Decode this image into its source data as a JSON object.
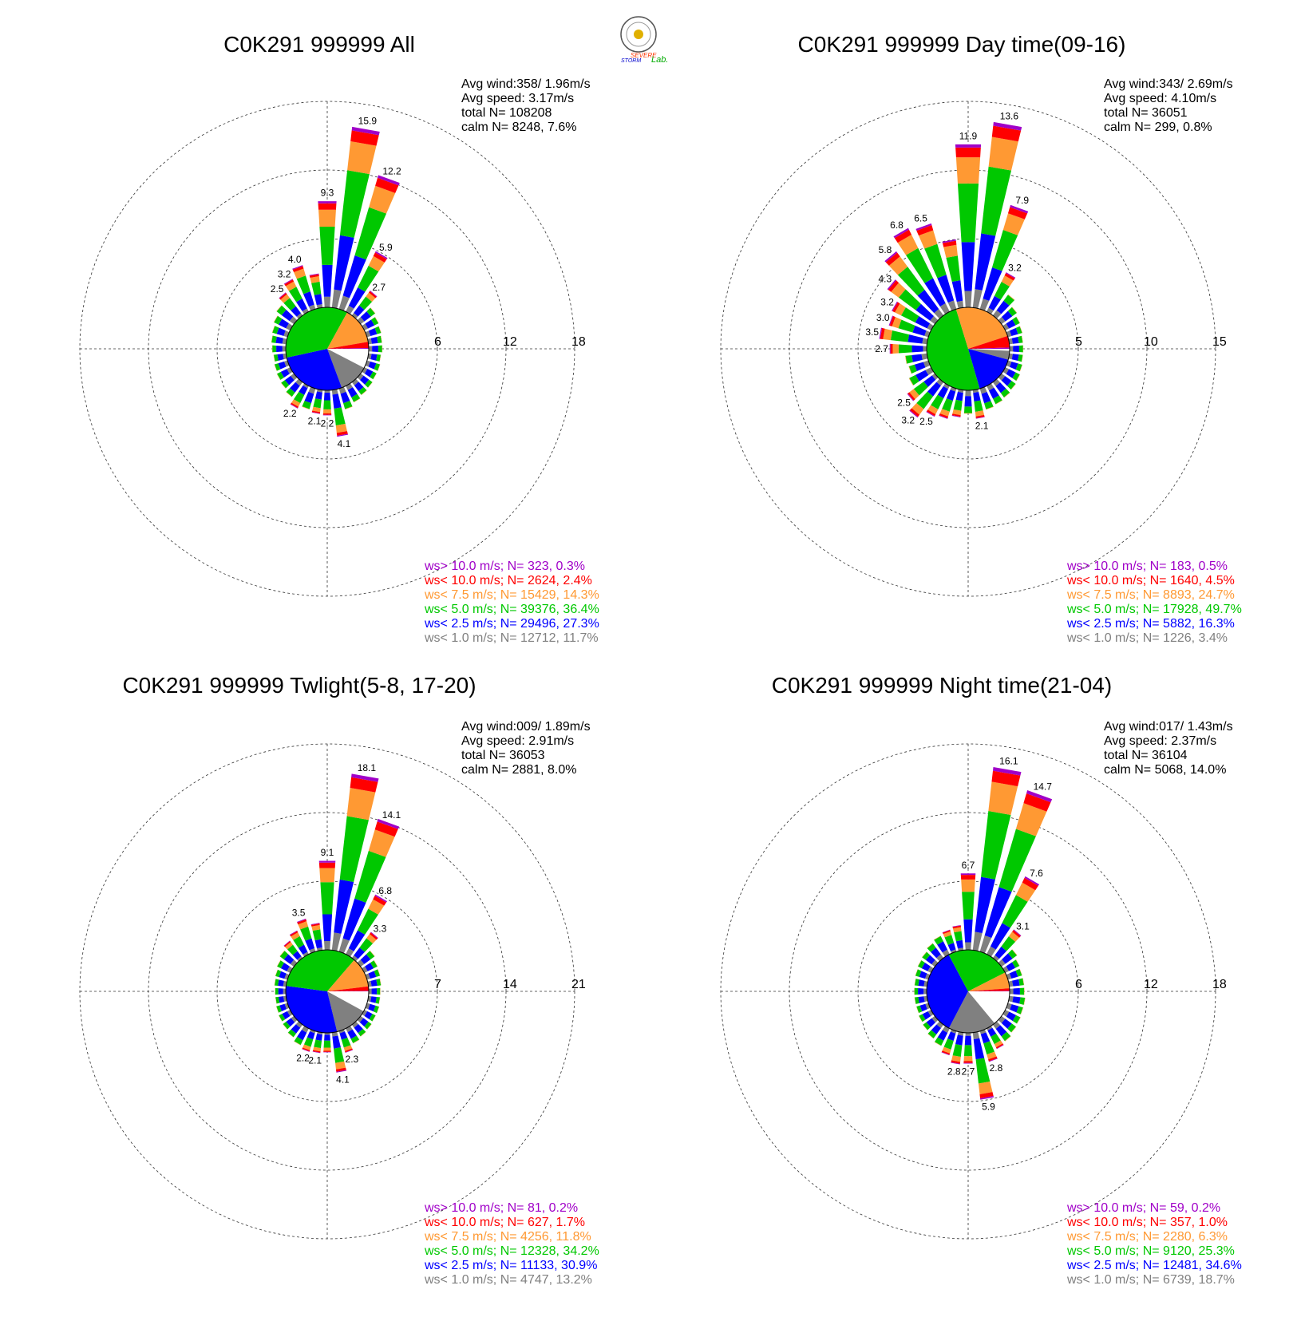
{
  "logo": {
    "text_line1": "SEVERE",
    "text_line2": "STORM",
    "text_line3": "Lab."
  },
  "colors": {
    "gt10": "#a000c8",
    "lt10": "#ff0000",
    "lt7_5": "#ff9933",
    "lt5": "#00c800",
    "lt2_5": "#0000ff",
    "lt1": "#808080",
    "calm": "#ffffff"
  },
  "chart_data": [
    {
      "type": "windrose",
      "title": "C0K291 999999 All",
      "info": [
        "Avg wind:358/ 1.96m/s",
        "Avg speed: 3.17m/s",
        "total N=     108208",
        "calm N=   8248,   7.6%"
      ],
      "ring_values": [
        6,
        12,
        18
      ],
      "ring_labels": [
        "6",
        "12",
        "18"
      ],
      "rmax": 18,
      "legend": [
        {
          "text": "ws> 10.0 m/s; N=   323,  0.3%",
          "color": "gt10"
        },
        {
          "text": "ws< 10.0 m/s; N=  2624,  2.4%",
          "color": "lt10"
        },
        {
          "text": "ws<  7.5 m/s; N= 15429, 14.3%",
          "color": "lt7_5"
        },
        {
          "text": "ws<  5.0 m/s; N= 39376, 36.4%",
          "color": "lt5"
        },
        {
          "text": "ws<  2.5 m/s; N= 29496, 27.3%",
          "color": "lt2_5"
        },
        {
          "text": "ws<  1.0 m/s; N= 12712, 11.7%",
          "color": "lt1"
        }
      ],
      "pie": [
        7.6,
        11.7,
        27.3,
        36.4,
        14.3,
        2.4,
        0.3
      ],
      "bars": [
        {
          "dir": 0,
          "total": 9.3,
          "label": "9.3"
        },
        {
          "dir": 10,
          "total": 15.9,
          "label": "15.9"
        },
        {
          "dir": 20,
          "total": 12.2,
          "label": "12.2"
        },
        {
          "dir": 30,
          "total": 5.9,
          "label": "5.9"
        },
        {
          "dir": 40,
          "total": 2.7,
          "label": "2.7"
        },
        {
          "dir": 50,
          "total": 1.6
        },
        {
          "dir": 60,
          "total": 1.4
        },
        {
          "dir": 70,
          "total": 1.3
        },
        {
          "dir": 80,
          "total": 1.2
        },
        {
          "dir": 90,
          "total": 1.2
        },
        {
          "dir": 100,
          "total": 1.1
        },
        {
          "dir": 110,
          "total": 1.2
        },
        {
          "dir": 120,
          "total": 1.2
        },
        {
          "dir": 130,
          "total": 1.3
        },
        {
          "dir": 140,
          "total": 1.4
        },
        {
          "dir": 150,
          "total": 1.6
        },
        {
          "dir": 160,
          "total": 1.9
        },
        {
          "dir": 170,
          "total": 4.1,
          "label": "4.1"
        },
        {
          "dir": 180,
          "total": 2.2,
          "label": "2.2"
        },
        {
          "dir": 190,
          "total": 2.1,
          "label": "2.1"
        },
        {
          "dir": 200,
          "total": 1.9
        },
        {
          "dir": 210,
          "total": 2.2,
          "label": "2.2"
        },
        {
          "dir": 220,
          "total": 1.6
        },
        {
          "dir": 230,
          "total": 1.4
        },
        {
          "dir": 240,
          "total": 1.3
        },
        {
          "dir": 250,
          "total": 1.2
        },
        {
          "dir": 260,
          "total": 1.1
        },
        {
          "dir": 270,
          "total": 1.2
        },
        {
          "dir": 280,
          "total": 1.3
        },
        {
          "dir": 290,
          "total": 1.4
        },
        {
          "dir": 300,
          "total": 1.6
        },
        {
          "dir": 310,
          "total": 1.9
        },
        {
          "dir": 320,
          "total": 2.5,
          "label": "2.5"
        },
        {
          "dir": 330,
          "total": 3.2,
          "label": "3.2"
        },
        {
          "dir": 340,
          "total": 4.0,
          "label": "4.0"
        },
        {
          "dir": 350,
          "total": 3.0
        }
      ]
    },
    {
      "type": "windrose",
      "title": "C0K291 999999 Day time(09-16)",
      "info": [
        "Avg wind:343/ 2.69m/s",
        "Avg speed: 4.10m/s",
        "total N=      36051",
        "calm N=    299,   0.8%"
      ],
      "ring_values": [
        5,
        10,
        15
      ],
      "ring_labels": [
        "5",
        "10",
        "15"
      ],
      "rmax": 15,
      "legend": [
        {
          "text": "ws> 10.0 m/s; N=   183,  0.5%",
          "color": "gt10"
        },
        {
          "text": "ws< 10.0 m/s; N=  1640,  4.5%",
          "color": "lt10"
        },
        {
          "text": "ws<  7.5 m/s; N=  8893, 24.7%",
          "color": "lt7_5"
        },
        {
          "text": "ws<  5.0 m/s; N= 17928, 49.7%",
          "color": "lt5"
        },
        {
          "text": "ws<  2.5 m/s; N=  5882, 16.3%",
          "color": "lt2_5"
        },
        {
          "text": "ws<  1.0 m/s; N=  1226,  3.4%",
          "color": "lt1"
        }
      ],
      "pie": [
        0.8,
        3.4,
        16.3,
        49.7,
        24.7,
        4.5,
        0.5
      ],
      "bars": [
        {
          "dir": 0,
          "total": 11.9,
          "label": "11.9"
        },
        {
          "dir": 10,
          "total": 13.6,
          "label": "13.6"
        },
        {
          "dir": 20,
          "total": 7.9,
          "label": "7.9"
        },
        {
          "dir": 30,
          "total": 3.2,
          "label": "3.2"
        },
        {
          "dir": 40,
          "total": 1.9
        },
        {
          "dir": 50,
          "total": 1.4
        },
        {
          "dir": 60,
          "total": 1.2
        },
        {
          "dir": 70,
          "total": 1.1
        },
        {
          "dir": 80,
          "total": 1.0
        },
        {
          "dir": 90,
          "total": 1.0
        },
        {
          "dir": 100,
          "total": 1.0
        },
        {
          "dir": 110,
          "total": 1.1
        },
        {
          "dir": 120,
          "total": 1.2
        },
        {
          "dir": 130,
          "total": 1.3
        },
        {
          "dir": 140,
          "total": 1.4
        },
        {
          "dir": 150,
          "total": 1.5
        },
        {
          "dir": 160,
          "total": 1.6
        },
        {
          "dir": 170,
          "total": 2.1,
          "label": "2.1"
        },
        {
          "dir": 180,
          "total": 1.7
        },
        {
          "dir": 190,
          "total": 2.0
        },
        {
          "dir": 200,
          "total": 2.3
        },
        {
          "dir": 210,
          "total": 2.5,
          "label": "2.5"
        },
        {
          "dir": 220,
          "total": 3.2,
          "label": "3.2"
        },
        {
          "dir": 230,
          "total": 2.5,
          "label": "2.5"
        },
        {
          "dir": 240,
          "total": 1.8
        },
        {
          "dir": 250,
          "total": 1.5
        },
        {
          "dir": 260,
          "total": 1.6
        },
        {
          "dir": 270,
          "total": 2.7,
          "label": "2.7"
        },
        {
          "dir": 280,
          "total": 3.5,
          "label": "3.5"
        },
        {
          "dir": 290,
          "total": 3.0,
          "label": "3.0"
        },
        {
          "dir": 300,
          "total": 3.2,
          "label": "3.2"
        },
        {
          "dir": 310,
          "total": 4.3,
          "label": "4.3"
        },
        {
          "dir": 320,
          "total": 5.8,
          "label": "5.8"
        },
        {
          "dir": 330,
          "total": 6.8,
          "label": "6.8"
        },
        {
          "dir": 340,
          "total": 6.5,
          "label": "6.5"
        },
        {
          "dir": 350,
          "total": 5.0
        }
      ]
    },
    {
      "type": "windrose",
      "title": "C0K291 999999 Twlight(5-8, 17-20)",
      "info": [
        "Avg wind:009/ 1.89m/s",
        "Avg speed: 2.91m/s",
        "total N=      36053",
        "calm N=   2881,   8.0%"
      ],
      "ring_values": [
        7,
        14,
        21
      ],
      "ring_labels": [
        "7",
        "14",
        "21"
      ],
      "rmax": 21,
      "legend": [
        {
          "text": "ws> 10.0 m/s; N=    81,  0.2%",
          "color": "gt10"
        },
        {
          "text": "ws< 10.0 m/s; N=   627,  1.7%",
          "color": "lt10"
        },
        {
          "text": "ws<  7.5 m/s; N=  4256, 11.8%",
          "color": "lt7_5"
        },
        {
          "text": "ws<  5.0 m/s; N= 12328, 34.2%",
          "color": "lt5"
        },
        {
          "text": "ws<  2.5 m/s; N= 11133, 30.9%",
          "color": "lt2_5"
        },
        {
          "text": "ws<  1.0 m/s; N=  4747, 13.2%",
          "color": "lt1"
        }
      ],
      "pie": [
        8.0,
        13.2,
        30.9,
        34.2,
        11.8,
        1.7,
        0.2
      ],
      "bars": [
        {
          "dir": 0,
          "total": 9.1,
          "label": "9.1"
        },
        {
          "dir": 10,
          "total": 18.1,
          "label": "18.1"
        },
        {
          "dir": 20,
          "total": 14.1,
          "label": "14.1"
        },
        {
          "dir": 30,
          "total": 6.8,
          "label": "6.8"
        },
        {
          "dir": 40,
          "total": 3.3,
          "label": "3.3"
        },
        {
          "dir": 50,
          "total": 1.8
        },
        {
          "dir": 60,
          "total": 1.5
        },
        {
          "dir": 70,
          "total": 1.4
        },
        {
          "dir": 80,
          "total": 1.3
        },
        {
          "dir": 90,
          "total": 1.2
        },
        {
          "dir": 100,
          "total": 1.2
        },
        {
          "dir": 110,
          "total": 1.3
        },
        {
          "dir": 120,
          "total": 1.3
        },
        {
          "dir": 130,
          "total": 1.4
        },
        {
          "dir": 140,
          "total": 1.5
        },
        {
          "dir": 150,
          "total": 1.7
        },
        {
          "dir": 160,
          "total": 2.3,
          "label": "2.3"
        },
        {
          "dir": 170,
          "total": 4.1,
          "label": "4.1"
        },
        {
          "dir": 180,
          "total": 2.0
        },
        {
          "dir": 190,
          "total": 2.1,
          "label": "2.1"
        },
        {
          "dir": 200,
          "total": 2.2,
          "label": "2.2"
        },
        {
          "dir": 210,
          "total": 1.9
        },
        {
          "dir": 220,
          "total": 1.6
        },
        {
          "dir": 230,
          "total": 1.4
        },
        {
          "dir": 240,
          "total": 1.3
        },
        {
          "dir": 250,
          "total": 1.2
        },
        {
          "dir": 260,
          "total": 1.1
        },
        {
          "dir": 270,
          "total": 1.1
        },
        {
          "dir": 280,
          "total": 1.2
        },
        {
          "dir": 290,
          "total": 1.3
        },
        {
          "dir": 300,
          "total": 1.5
        },
        {
          "dir": 310,
          "total": 1.8
        },
        {
          "dir": 320,
          "total": 2.2
        },
        {
          "dir": 330,
          "total": 2.7
        },
        {
          "dir": 340,
          "total": 3.5,
          "label": "3.5"
        },
        {
          "dir": 350,
          "total": 2.8
        }
      ]
    },
    {
      "type": "windrose",
      "title": "C0K291 999999 Night time(21-04)",
      "info": [
        "Avg wind:017/ 1.43m/s",
        "Avg speed: 2.37m/s",
        "total N=      36104",
        "calm N=   5068,  14.0%"
      ],
      "ring_values": [
        6,
        12,
        18
      ],
      "ring_labels": [
        "6",
        "12",
        "18"
      ],
      "rmax": 18,
      "legend": [
        {
          "text": "ws> 10.0 m/s; N=    59,  0.2%",
          "color": "gt10"
        },
        {
          "text": "ws< 10.0 m/s; N=   357,  1.0%",
          "color": "lt10"
        },
        {
          "text": "ws<  7.5 m/s; N=  2280,  6.3%",
          "color": "lt7_5"
        },
        {
          "text": "ws<  5.0 m/s; N=  9120, 25.3%",
          "color": "lt5"
        },
        {
          "text": "ws<  2.5 m/s; N= 12481, 34.6%",
          "color": "lt2_5"
        },
        {
          "text": "ws<  1.0 m/s; N=  6739, 18.7%",
          "color": "lt1"
        }
      ],
      "pie": [
        14.0,
        18.7,
        34.6,
        25.3,
        6.3,
        1.0,
        0.2
      ],
      "bars": [
        {
          "dir": 0,
          "total": 6.7,
          "label": "6.7"
        },
        {
          "dir": 10,
          "total": 16.1,
          "label": "16.1"
        },
        {
          "dir": 20,
          "total": 14.7,
          "label": "14.7"
        },
        {
          "dir": 30,
          "total": 7.6,
          "label": "7.6"
        },
        {
          "dir": 40,
          "total": 3.1,
          "label": "3.1"
        },
        {
          "dir": 50,
          "total": 1.7
        },
        {
          "dir": 60,
          "total": 1.4
        },
        {
          "dir": 70,
          "total": 1.3
        },
        {
          "dir": 80,
          "total": 1.3
        },
        {
          "dir": 90,
          "total": 1.3
        },
        {
          "dir": 100,
          "total": 1.4
        },
        {
          "dir": 110,
          "total": 1.4
        },
        {
          "dir": 120,
          "total": 1.5
        },
        {
          "dir": 130,
          "total": 1.6
        },
        {
          "dir": 140,
          "total": 1.8
        },
        {
          "dir": 150,
          "total": 2.0
        },
        {
          "dir": 160,
          "total": 2.8,
          "label": "2.8"
        },
        {
          "dir": 170,
          "total": 5.9,
          "label": "5.9"
        },
        {
          "dir": 180,
          "total": 2.7,
          "label": "2.7"
        },
        {
          "dir": 190,
          "total": 2.8,
          "label": "2.8"
        },
        {
          "dir": 200,
          "total": 2.2
        },
        {
          "dir": 210,
          "total": 1.7
        },
        {
          "dir": 220,
          "total": 1.5
        },
        {
          "dir": 230,
          "total": 1.3
        },
        {
          "dir": 240,
          "total": 1.2
        },
        {
          "dir": 250,
          "total": 1.1
        },
        {
          "dir": 260,
          "total": 1.1
        },
        {
          "dir": 270,
          "total": 1.1
        },
        {
          "dir": 280,
          "total": 1.1
        },
        {
          "dir": 290,
          "total": 1.2
        },
        {
          "dir": 300,
          "total": 1.3
        },
        {
          "dir": 310,
          "total": 1.4
        },
        {
          "dir": 320,
          "total": 1.6
        },
        {
          "dir": 330,
          "total": 1.8
        },
        {
          "dir": 340,
          "total": 2.0
        },
        {
          "dir": 350,
          "total": 2.2
        }
      ]
    }
  ]
}
